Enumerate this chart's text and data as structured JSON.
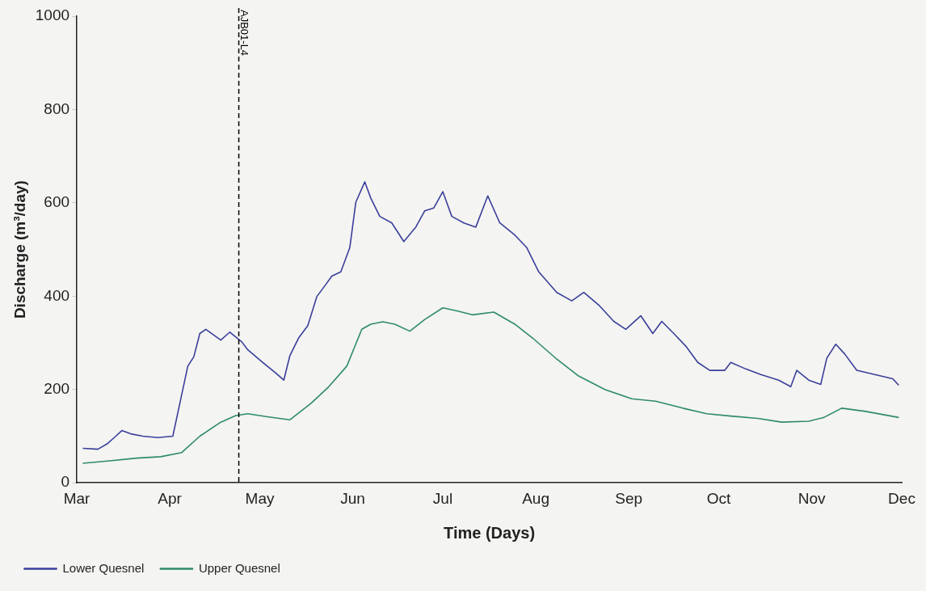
{
  "chart_data": {
    "type": "line",
    "xlabel": "Time (Days)",
    "ylabel": "Discharge (m³/day)",
    "xlim": [
      "--03-01",
      "--12-01"
    ],
    "xticks": [
      {
        "value": "--03-01",
        "label": "Mar"
      },
      {
        "value": "--04-01",
        "label": "Apr"
      },
      {
        "value": "--05-01",
        "label": "May"
      },
      {
        "value": "--06-01",
        "label": "Jun"
      },
      {
        "value": "--07-01",
        "label": "Jul"
      },
      {
        "value": "--08-01",
        "label": "Aug"
      },
      {
        "value": "--09-01",
        "label": "Sep"
      },
      {
        "value": "--10-01",
        "label": "Oct"
      },
      {
        "value": "--11-01",
        "label": "Nov"
      },
      {
        "value": "--12-01",
        "label": "Dec"
      }
    ],
    "ylim": [
      0,
      1000
    ],
    "yticks": [
      0,
      200,
      400,
      600,
      800,
      1000
    ],
    "grid": false,
    "legend": "bottom left",
    "marker": "none",
    "line_style": "solid",
    "ref_lines": [
      {
        "axis": "x",
        "value": "--04-24",
        "label": "AJB01-L4",
        "color": "#000000",
        "line_style": "dashed"
      }
    ],
    "series": [
      {
        "name": "Lower Quesnel",
        "color": "#3a3f9a",
        "x": [
          "--03-03",
          "--03-08",
          "--03-11",
          "--03-14",
          "--03-16",
          "--03-19",
          "--03-23",
          "--03-28",
          "--04-02",
          "--04-07",
          "--04-09",
          "--04-11",
          "--04-13",
          "--04-18",
          "--04-21",
          "--04-25",
          "--04-27",
          "--05-02",
          "--05-06",
          "--05-09",
          "--05-11",
          "--05-14",
          "--05-17",
          "--05-20",
          "--05-23",
          "--05-25",
          "--05-28",
          "--05-31",
          "--06-02",
          "--06-05",
          "--06-07",
          "--06-10",
          "--06-14",
          "--06-18",
          "--06-22",
          "--06-25",
          "--06-28",
          "--07-01",
          "--07-04",
          "--07-08",
          "--07-12",
          "--07-16",
          "--07-20",
          "--07-25",
          "--07-29",
          "--08-02",
          "--08-08",
          "--08-13",
          "--08-17",
          "--08-22",
          "--08-27",
          "--08-31",
          "--09-05",
          "--09-09",
          "--09-12",
          "--09-16",
          "--09-20",
          "--09-24",
          "--09-28",
          "--10-03",
          "--10-05",
          "--10-10",
          "--10-15",
          "--10-21",
          "--10-25",
          "--10-27",
          "--10-31",
          "--11-04",
          "--11-06",
          "--11-09",
          "--11-12",
          "--11-16",
          "--11-22",
          "--11-28",
          "--11-30"
        ],
        "values": [
          74,
          72,
          83,
          100,
          112,
          105,
          100,
          97,
          100,
          250,
          270,
          320,
          329,
          306,
          323,
          302,
          285,
          258,
          237,
          220,
          272,
          311,
          337,
          399,
          425,
          443,
          452,
          504,
          601,
          645,
          610,
          571,
          557,
          517,
          548,
          583,
          589,
          624,
          571,
          557,
          548,
          615,
          557,
          531,
          504,
          452,
          408,
          390,
          408,
          381,
          346,
          329,
          358,
          320,
          346,
          320,
          293,
          258,
          241,
          241,
          258,
          244,
          232,
          220,
          206,
          241,
          220,
          211,
          267,
          297,
          276,
          241,
          232,
          223,
          209
        ]
      },
      {
        "name": "Upper Quesnel",
        "color": "#2e8b6a",
        "x": [
          "--03-03",
          "--03-12",
          "--03-21",
          "--03-29",
          "--04-05",
          "--04-11",
          "--04-18",
          "--04-23",
          "--04-27",
          "--05-04",
          "--05-11",
          "--05-18",
          "--05-24",
          "--05-30",
          "--06-04",
          "--06-07",
          "--06-11",
          "--06-15",
          "--06-20",
          "--06-25",
          "--07-01",
          "--07-06",
          "--07-11",
          "--07-18",
          "--07-25",
          "--07-31",
          "--08-08",
          "--08-15",
          "--08-24",
          "--09-02",
          "--09-10",
          "--09-19",
          "--09-27",
          "--10-05",
          "--10-14",
          "--10-22",
          "--10-31",
          "--11-05",
          "--11-11",
          "--11-19",
          "--11-30"
        ],
        "values": [
          42,
          47,
          53,
          56,
          65,
          100,
          130,
          144,
          148,
          141,
          135,
          170,
          206,
          250,
          329,
          340,
          345,
          340,
          325,
          350,
          375,
          368,
          360,
          366,
          340,
          310,
          265,
          230,
          200,
          180,
          175,
          160,
          148,
          143,
          138,
          130,
          132,
          140,
          160,
          153,
          140
        ]
      }
    ]
  }
}
